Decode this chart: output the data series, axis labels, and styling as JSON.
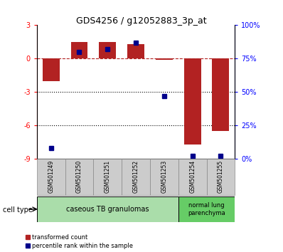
{
  "title": "GDS4256 / g12052883_3p_at",
  "samples": [
    "GSM501249",
    "GSM501250",
    "GSM501251",
    "GSM501252",
    "GSM501253",
    "GSM501254",
    "GSM501255"
  ],
  "transformed_count": [
    -2.0,
    1.5,
    1.5,
    1.3,
    -0.1,
    -7.7,
    -6.5
  ],
  "percentile_rank": [
    8,
    80,
    82,
    87,
    47,
    2,
    2
  ],
  "ylim_left": [
    -9,
    3
  ],
  "ylim_right": [
    0,
    100
  ],
  "yticks_left": [
    -9,
    -6,
    -3,
    0,
    3
  ],
  "yticks_right": [
    0,
    25,
    50,
    75,
    100
  ],
  "yticklabels_right": [
    "0%",
    "25%",
    "50%",
    "75%",
    "100%"
  ],
  "bar_color": "#b22222",
  "dot_color": "#00008b",
  "dotted_lines": [
    -3,
    -6
  ],
  "group1_label": "caseous TB granulomas",
  "group1_color": "#aaddaa",
  "group1_samples": 5,
  "group2_label": "normal lung\nparenchyma",
  "group2_color": "#66cc66",
  "group2_samples": 2,
  "cell_type_label": "cell type",
  "legend_labels": [
    "transformed count",
    "percentile rank within the sample"
  ],
  "legend_colors": [
    "#b22222",
    "#00008b"
  ],
  "bar_width": 0.6,
  "title_fontsize": 9,
  "tick_fontsize": 7,
  "label_fontsize": 6.5,
  "group_fontsize": 7
}
